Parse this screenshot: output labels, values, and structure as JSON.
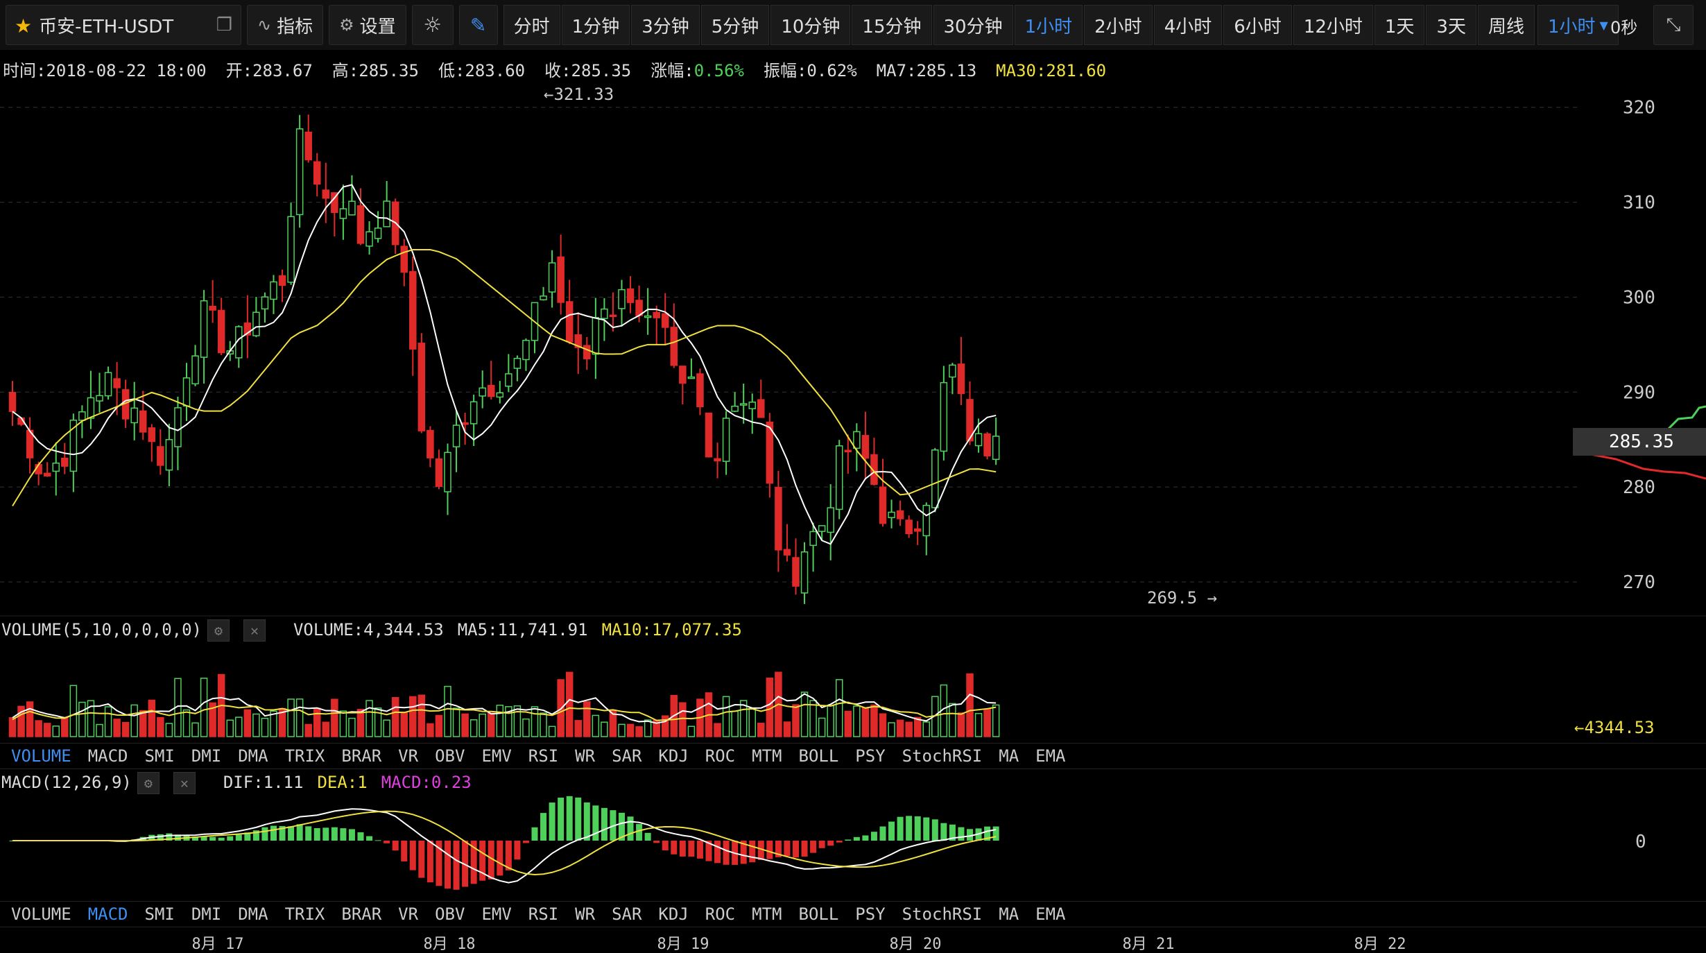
{
  "toolbar": {
    "title": "币安-ETH-USDT",
    "indicator_label": "指标",
    "settings_label": "设置",
    "timeframes": [
      "分时",
      "1分钟",
      "3分钟",
      "5分钟",
      "10分钟",
      "15分钟",
      "30分钟",
      "1小时",
      "2小时",
      "4小时",
      "6小时",
      "12小时",
      "1天",
      "3天",
      "周线"
    ],
    "active_timeframe": "1小时",
    "selected_timeframe": "1小时",
    "countdown": "0秒"
  },
  "info": {
    "time": "时间:2018-08-22 18:00",
    "open": "开:283.67",
    "high": "高:285.35",
    "low": "低:283.60",
    "close": "收:285.35",
    "change_label": "涨幅:",
    "change_value": "0.56%",
    "amplitude": "振幅:0.62%",
    "ma7": "MA7:285.13",
    "ma30": "MA30:281.60"
  },
  "price_axis": {
    "ticks": [
      "320",
      "310",
      "300",
      "290",
      "280",
      "270"
    ],
    "current": "285.35"
  },
  "annotations": {
    "high": "321.33",
    "low": "269.5"
  },
  "volume": {
    "title": "VOLUME(5,10,0,0,0,0)",
    "value": "VOLUME:4,344.53",
    "ma5": "MA5:11,741.91",
    "ma10": "MA10:17,077.35",
    "last": "4344.53"
  },
  "macd": {
    "title": "MACD(12,26,9)",
    "dif": "DIF:1.11",
    "dea": "DEA:1",
    "macd": "MACD:0.23",
    "zero": "0"
  },
  "indicator_tabs": [
    "VOLUME",
    "MACD",
    "SMI",
    "DMI",
    "DMA",
    "TRIX",
    "BRAR",
    "VR",
    "OBV",
    "EMV",
    "RSI",
    "WR",
    "SAR",
    "KDJ",
    "ROC",
    "MTM",
    "BOLL",
    "PSY",
    "StochRSI",
    "MA",
    "EMA"
  ],
  "tabs1_active": "VOLUME",
  "tabs2_active": "MACD",
  "date_axis": [
    "8月 17",
    "8月 18",
    "8月 19",
    "8月 20",
    "8月 21",
    "8月 22"
  ],
  "colors": {
    "up": "#4fd05a",
    "down": "#e02a2a",
    "ma7": "#ffffff",
    "ma30": "#f0e040",
    "accent": "#3f8ef2"
  },
  "chart_data": {
    "type": "candlestick",
    "ylim": [
      267,
      324
    ],
    "close_series": [
      288,
      285,
      281,
      283,
      286,
      290,
      291,
      289,
      288,
      283,
      285,
      293,
      298,
      296,
      294,
      298,
      300,
      302,
      316,
      314,
      309,
      311,
      306,
      309,
      308,
      298,
      284,
      280,
      286,
      290,
      291,
      292,
      293,
      298,
      304,
      296,
      292,
      300,
      299,
      301,
      297,
      296,
      289,
      291,
      282,
      288,
      290,
      289,
      276,
      270,
      274,
      276,
      282,
      285,
      282,
      277,
      275,
      277,
      281,
      294,
      287,
      284,
      285.35
    ],
    "ma30_series": [
      278,
      282,
      285,
      287,
      288,
      289,
      290,
      289,
      288,
      288,
      290,
      293,
      296,
      297,
      299,
      302,
      304,
      305,
      305,
      304,
      302,
      300,
      298,
      296,
      295,
      294,
      294,
      295,
      295,
      296,
      297,
      297,
      296,
      294,
      291,
      288,
      284,
      281,
      279,
      280,
      281,
      282,
      281.6
    ]
  }
}
